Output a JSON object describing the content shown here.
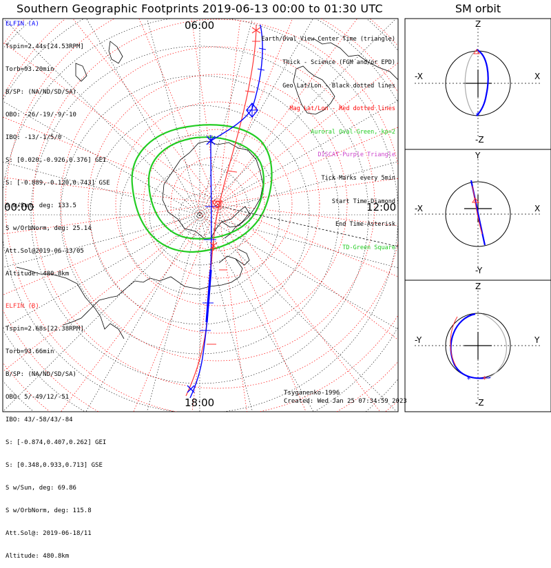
{
  "header": {
    "title": "Southern Geographic Footprints 2019-06-13 00:00 to 01:30 UTC",
    "sm_title": "SM orbit"
  },
  "map": {
    "local_time_labels": {
      "top": "06:00",
      "left": "00:00",
      "right": "12:00",
      "bottom": "18:00"
    }
  },
  "legend": [
    {
      "text": "Earth/Oval View Center Time (triangle)",
      "color": "#000000"
    },
    {
      "text": "Thick - Science (FGM and/or EPD)",
      "color": "#000000"
    },
    {
      "text": "Geo Lat/Lon - Black dotted lines",
      "color": "#000000"
    },
    {
      "text": "Mag Lat/Lon - Red dotted lines",
      "color": "#ff0000"
    },
    {
      "text": "Auroral Oval-Green, kp=2",
      "color": "#22cc22"
    },
    {
      "text": "DISCAT-Purple Triangle",
      "color": "#cc44cc"
    },
    {
      "text": "Tick Marks every 5min",
      "color": "#000000"
    },
    {
      "text": "Start Time-Diamond",
      "color": "#000000"
    },
    {
      "text": "End Time-Asterisk",
      "color": "#000000"
    },
    {
      "text": "TD-Green Square",
      "color": "#22cc22"
    }
  ],
  "elfin_a": {
    "name": "ELFIN (A)",
    "color": "#0000ff",
    "lines": [
      "Tspin=2.44s[24.53RPM]",
      "Torb=93.20min",
      "B/SP: (NA/ND/SD/SA)",
      "OBO: -26/-19/-9/-10",
      "IBO: -13/-1/5/0",
      "S: [0.020,-0.926,0.376] GEI",
      "S: [-0.889,-0.120,0.743] GSE",
      "S w/Sun, deg: 133.5",
      "S w/OrbNorm, deg: 25.14",
      "Att.Sol@2019-06-13/05",
      "Altitude: 480.8km"
    ]
  },
  "elfin_b": {
    "name": "ELFIN (B)",
    "color": "#ff3333",
    "lines": [
      "Tspin=2.68s[22.38RPM]",
      "Torb=93.66min",
      "B/SP: (NA/ND/SD/SA)",
      "OBO: 5/-49/12/-51",
      "IBO: 43/-58/43/-84",
      "S: [-0.874,0.407,0.262] GEI",
      "S: [0.348,0.933,0.713] GSE",
      "S w/Sun, deg: 69.86",
      "S w/OrbNorm, deg: 115.8",
      "Att.Sol@: 2019-06-18/11",
      "Altitude: 480.8km"
    ]
  },
  "footer": {
    "model": "Tsyganenko-1996",
    "created": "Created: Wed Jan 25 07:34:59 2023"
  },
  "sm_orbit": {
    "panels": [
      {
        "top": "Z",
        "bottom": "-Z",
        "left": "-X",
        "right": "X"
      },
      {
        "top": "Y",
        "bottom": "-Y",
        "left": "-X",
        "right": "X"
      },
      {
        "top": "Z",
        "bottom": "-Z",
        "left": "-Y",
        "right": "Y"
      }
    ]
  },
  "chart_data": {
    "type": "polar-map",
    "title": "Southern Geographic Footprints 2019-06-13 00:00 to 01:30 UTC",
    "local_time_labels": [
      "06:00",
      "12:00",
      "18:00",
      "00:00"
    ],
    "auroral_oval_kp": 2,
    "tick_interval_min": 5,
    "series": [
      {
        "name": "ELFIN (A)",
        "color": "#0000ff"
      },
      {
        "name": "ELFIN (B)",
        "color": "#ff3333"
      }
    ]
  }
}
